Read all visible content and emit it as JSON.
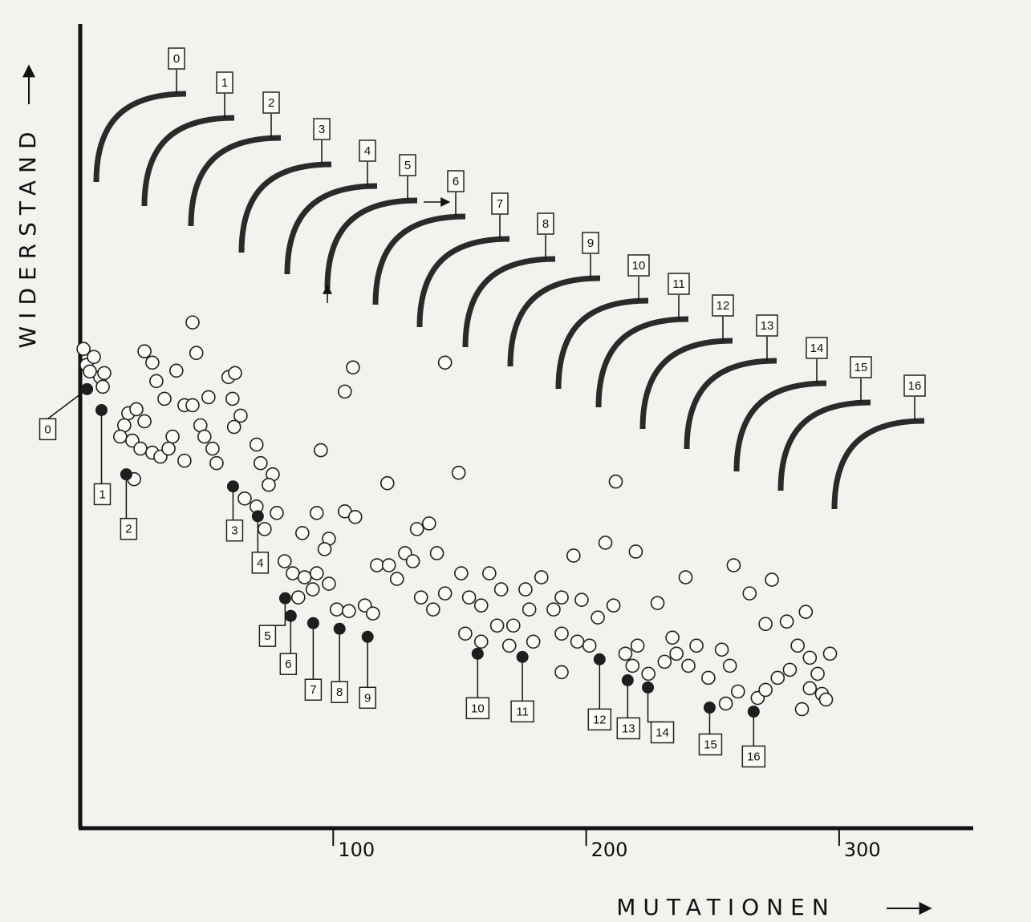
{
  "chart_data": {
    "type": "scatter",
    "x_label": "MUTATIONEN",
    "y_label": "WIDERSTAND",
    "xlim": [
      0,
      353
    ],
    "ylim": [
      0,
      100
    ],
    "xticks": [
      100,
      200,
      300
    ],
    "color": "#1e1e1e",
    "profile_labels": [
      "0",
      "1",
      "2",
      "3",
      "4",
      "5",
      "6",
      "7",
      "8",
      "9",
      "10",
      "11",
      "12",
      "13",
      "14",
      "15",
      "16"
    ],
    "series": [
      {
        "filled": true,
        "x": [
          2.7,
          8.4,
          18.2,
          60.4,
          70.2,
          81.0,
          83.2,
          92.1,
          102.5,
          113.6,
          157.1,
          174.8,
          205.3,
          216.4,
          224.4,
          248.8,
          266.2
        ],
        "values": [
          54.6,
          52.0,
          44.0,
          42.5,
          38.8,
          28.6,
          26.4,
          25.5,
          24.8,
          23.8,
          21.7,
          21.3,
          21.0,
          18.4,
          17.5,
          15.0,
          14.5
        ],
        "point_labels": [
          "0",
          "1",
          "2",
          "3",
          "4",
          "5",
          "6",
          "7",
          "8",
          "9",
          "10",
          "11",
          "12",
          "13",
          "14",
          "15",
          "16"
        ]
      },
      {
        "filled": false,
        "x": [
          1.3,
          2.5,
          5.4,
          7.9,
          9.5,
          3.8,
          8.9,
          19,
          22.2,
          17.4,
          25.4,
          15.8,
          20.6,
          23.8,
          28.5,
          31.7,
          36.5,
          34.9,
          41.2,
          21.3,
          25.4,
          28.5,
          30.1,
          38,
          44.4,
          45.9,
          33.3,
          41.2,
          44.4,
          50.7,
          47.5,
          49.1,
          52.3,
          53.9,
          58.6,
          61.2,
          60.2,
          63.4,
          60.8,
          69.7,
          71.3,
          76.1,
          74.5,
          65,
          69.7,
          77.7,
          72.9,
          107.8,
          104.6,
          95.1,
          121.4,
          144.2,
          149.6,
          211.7,
          93.5,
          104.6,
          108.7,
          87.8,
          98.3,
          96.6,
          80.8,
          84,
          88.7,
          93.5,
          98.3,
          86.2,
          91.9,
          101.4,
          106.2,
          112.5,
          115.7,
          117.3,
          122,
          125.2,
          128.4,
          131.5,
          133.1,
          137.9,
          141,
          134.7,
          139.5,
          144.2,
          150.6,
          153.7,
          158.5,
          161.7,
          166.4,
          171.2,
          176,
          177.5,
          182.3,
          187.1,
          190.3,
          195,
          198.2,
          204.6,
          207.6,
          210.8,
          219.6,
          228.2,
          239.3,
          258.3,
          264.6,
          273.4,
          270.9,
          279.3,
          286.8,
          152.2,
          158.5,
          164.8,
          169.6,
          179.1,
          190.3,
          196.5,
          201.3,
          215.5,
          220.3,
          218.3,
          224.6,
          231.0,
          235.7,
          240.4,
          243.6,
          248.3,
          253.6,
          256.8,
          255.2,
          260,
          267.8,
          270.9,
          275.7,
          280.5,
          283.6,
          288.4,
          291.5,
          296.4,
          293.2,
          285.3,
          294.8,
          288.4,
          190.3,
          234.1
        ],
        "values": [
          59.6,
          57.6,
          58.6,
          56.1,
          56.6,
          56.8,
          54.9,
          51.6,
          52.1,
          50.1,
          50.6,
          48.7,
          48.2,
          47.2,
          46.7,
          46.2,
          48.7,
          47.2,
          45.7,
          43.4,
          59.3,
          57.9,
          55.6,
          56.9,
          62.9,
          59.1,
          53.4,
          52.6,
          52.6,
          53.6,
          50.1,
          48.7,
          47.2,
          45.4,
          56.1,
          56.6,
          53.4,
          51.3,
          49.9,
          47.7,
          45.4,
          44.0,
          42.7,
          41,
          40,
          39.2,
          37.2,
          57.3,
          54.3,
          47,
          42.9,
          57.9,
          44.2,
          43.1,
          39.2,
          39.4,
          38.7,
          36.7,
          36,
          34.7,
          33.2,
          31.7,
          31.2,
          31.7,
          30.4,
          28.7,
          29.7,
          27.2,
          27,
          27.7,
          26.7,
          32.7,
          32.7,
          31,
          34.2,
          33.2,
          37.2,
          37.9,
          34.2,
          28.7,
          27.2,
          29.2,
          31.7,
          28.7,
          27.7,
          31.7,
          29.7,
          25.2,
          29.7,
          27.2,
          31.2,
          27.2,
          28.7,
          33.9,
          28.4,
          26.2,
          35.5,
          27.7,
          34.4,
          28.0,
          31.2,
          32.7,
          29.2,
          30.9,
          25.4,
          25.7,
          26.9,
          24.2,
          23.2,
          25.2,
          22.7,
          23.2,
          24.2,
          23.2,
          22.7,
          21.7,
          22.7,
          20.2,
          19.2,
          20.7,
          21.7,
          20.2,
          22.7,
          18.7,
          22.2,
          20.2,
          15.5,
          17,
          16.2,
          17.2,
          18.7,
          19.7,
          22.7,
          21.2,
          19.2,
          21.7,
          16.7,
          14.8,
          16,
          17.4,
          19.4,
          23.7
        ]
      }
    ]
  }
}
